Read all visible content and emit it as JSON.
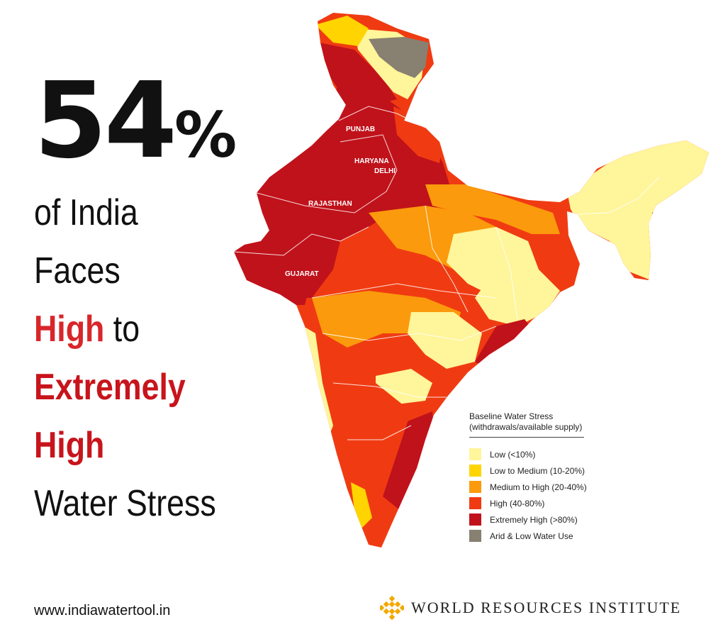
{
  "headline": {
    "number": "54",
    "percent": "%",
    "line1": "of India",
    "line2": "Faces",
    "line3_high": "High",
    "line3_to": " to",
    "line4": "Extremely",
    "line5": "High",
    "line6": "Water Stress"
  },
  "map": {
    "labels": {
      "punjab": "PUNJAB",
      "haryana": "HARYANA",
      "delhi": "DELHI",
      "rajasthan": "RAJASTHAN",
      "gujarat": "GUJARAT"
    }
  },
  "legend": {
    "title_line1": "Baseline Water Stress",
    "title_line2": "(withdrawals/available supply)",
    "items": [
      {
        "label": "Low (<10%)",
        "color": "#fff59a"
      },
      {
        "label": "Low to Medium (10-20%)",
        "color": "#ffd400"
      },
      {
        "label": "Medium to High (20-40%)",
        "color": "#fb9a0c"
      },
      {
        "label": "High (40-80%)",
        "color": "#f03b12"
      },
      {
        "label": "Extremely High (>80%)",
        "color": "#c0121b"
      },
      {
        "label": "Arid & Low Water Use",
        "color": "#888070"
      }
    ]
  },
  "footer": {
    "url": "www.indiawatertool.in",
    "org": "WORLD RESOURCES INSTITUTE"
  }
}
